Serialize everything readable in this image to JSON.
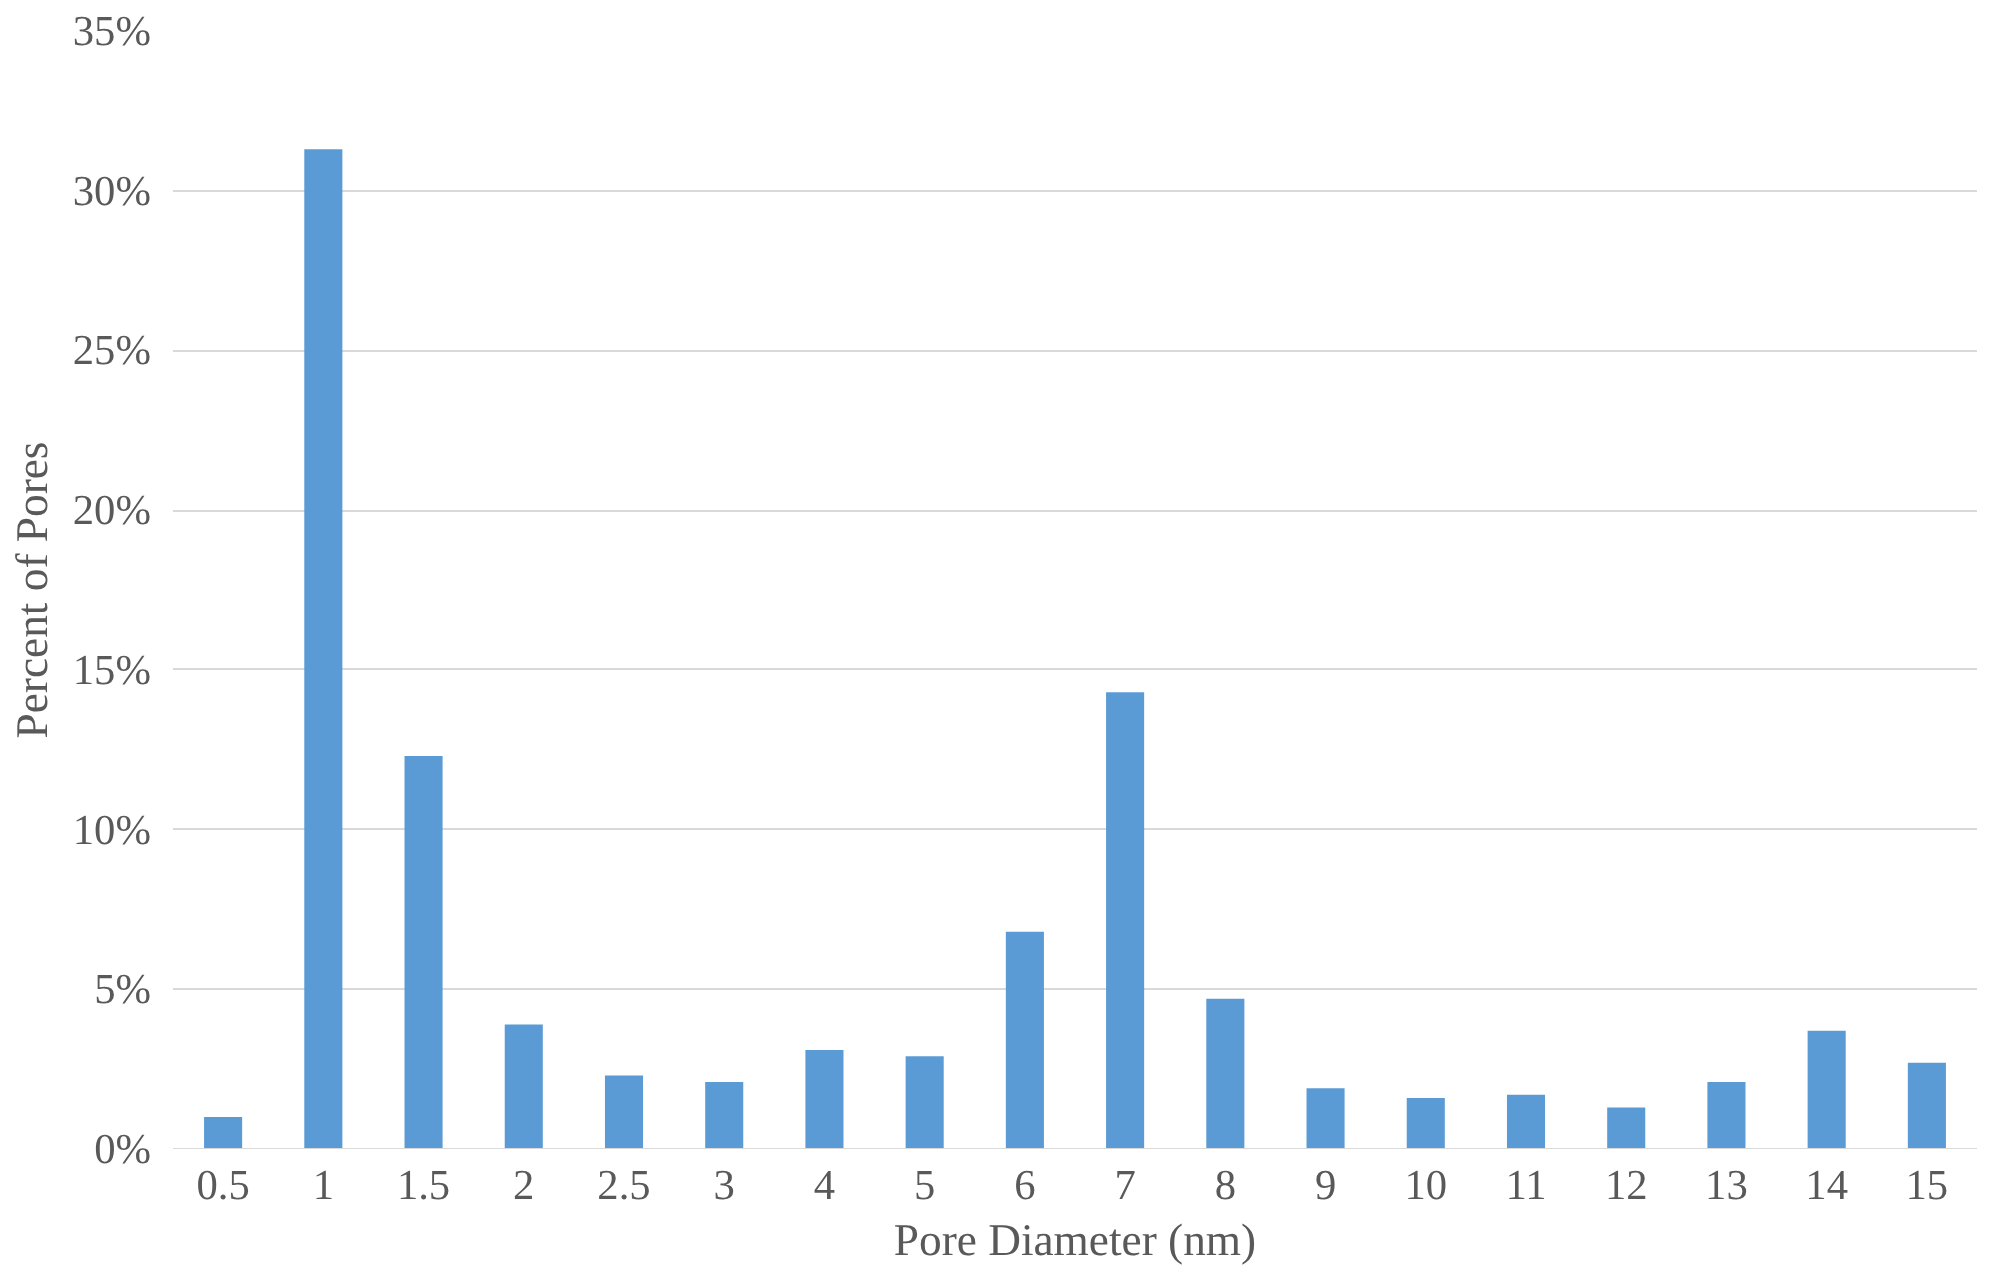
{
  "chart_data": {
    "type": "bar",
    "xlabel": "Pore Diameter (nm)",
    "ylabel": "Percent of Pores",
    "categories": [
      "0.5",
      "1",
      "1.5",
      "2",
      "2.5",
      "3",
      "4",
      "5",
      "6",
      "7",
      "8",
      "9",
      "10",
      "11",
      "12",
      "13",
      "14",
      "15"
    ],
    "values": [
      1.0,
      31.3,
      12.3,
      3.9,
      2.3,
      2.1,
      3.1,
      2.9,
      6.8,
      14.3,
      4.7,
      1.9,
      1.6,
      1.7,
      1.3,
      2.1,
      3.7,
      2.7
    ],
    "color": "#5b9bd5",
    "ylim": [
      0,
      35
    ],
    "yticks": [
      {
        "value": 0,
        "label": "0%"
      },
      {
        "value": 5,
        "label": "5%"
      },
      {
        "value": 10,
        "label": "10%"
      },
      {
        "value": 15,
        "label": "15%"
      },
      {
        "value": 20,
        "label": "20%"
      },
      {
        "value": 25,
        "label": "25%"
      },
      {
        "value": 30,
        "label": "30%"
      },
      {
        "value": 35,
        "label": "35%"
      }
    ],
    "grid": "y"
  }
}
